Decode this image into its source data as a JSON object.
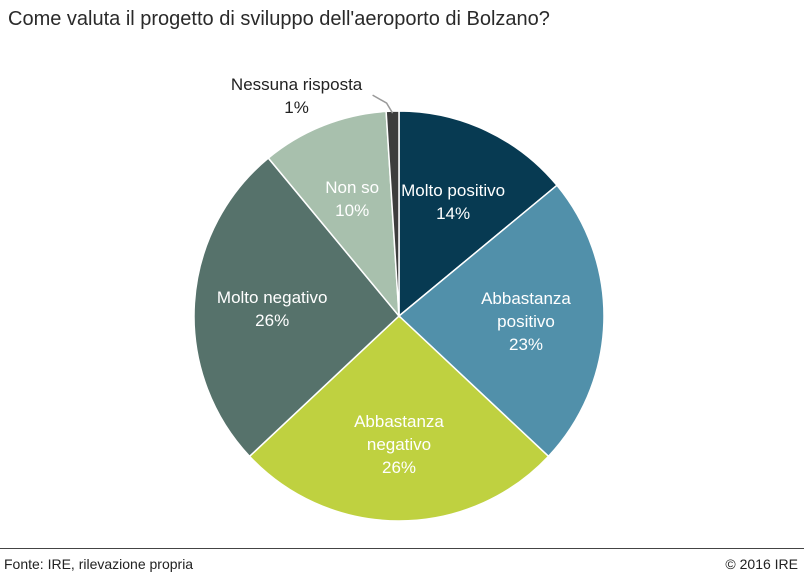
{
  "chart_data": {
    "type": "pie",
    "title": "Come valuta il progetto di sviluppo dell'aeroporto di Bolzano?",
    "slices": [
      {
        "label": "Molto positivo",
        "value": 14,
        "display": "14%",
        "color": "#073a52",
        "text_color": "#ffffff"
      },
      {
        "label": "Abbastanza positivo",
        "label_lines": [
          "Abbastanza",
          "positivo"
        ],
        "value": 23,
        "display": "23%",
        "color": "#5190aa",
        "text_color": "#ffffff"
      },
      {
        "label": "Abbastanza negativo",
        "label_lines": [
          "Abbastanza",
          "negativo"
        ],
        "value": 26,
        "display": "26%",
        "color": "#bfd140",
        "text_color": "#ffffff"
      },
      {
        "label": "Molto negativo",
        "value": 26,
        "display": "26%",
        "color": "#56726b",
        "text_color": "#ffffff"
      },
      {
        "label": "Non so",
        "value": 10,
        "display": "10%",
        "color": "#a8c0ad",
        "text_color": "#ffffff"
      },
      {
        "label": "Nessuna risposta",
        "value": 1,
        "display": "1%",
        "color": "#3d3d3d",
        "text_color": "#222222",
        "external_label": true
      }
    ],
    "legend": "none",
    "start": "top",
    "direction": "clockwise"
  },
  "footer": {
    "source": "Fonte: IRE, rilevazione propria",
    "copyright": "© 2016 IRE"
  }
}
